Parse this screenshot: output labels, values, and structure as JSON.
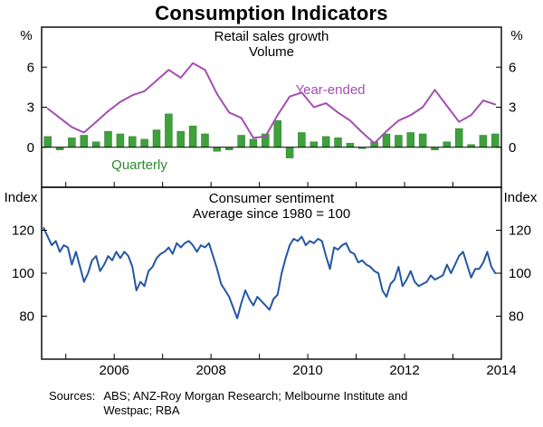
{
  "title": "Consumption Indicators",
  "footer": {
    "sources_label": "Sources:",
    "sources_line1": "ABS; ANZ-Roy Morgan Research; Melbourne Institute and",
    "sources_line2": "Westpac; RBA"
  },
  "x_axis": {
    "xlim": [
      2004.5,
      2014
    ],
    "year_tick_marks": [
      2005,
      2006,
      2007,
      2008,
      2009,
      2010,
      2011,
      2012,
      2013
    ],
    "year_labels": [
      2006,
      2008,
      2010,
      2012,
      2014
    ]
  },
  "chart_data": [
    {
      "type": "bar+line",
      "title": "Retail sales growth",
      "subtitle": "Volume",
      "unit_left": "%",
      "unit_right": "%",
      "ylim": [
        -3,
        9
      ],
      "yticks": [
        0,
        3,
        6
      ],
      "zero_line": true,
      "grid": false,
      "series": [
        {
          "name": "Year-ended",
          "type": "line",
          "color": "#a44fb0",
          "x_start": 2004.625,
          "x_step": 0.25,
          "values": [
            2.9,
            2.2,
            1.5,
            1.1,
            1.9,
            2.7,
            3.4,
            3.9,
            4.2,
            5.0,
            5.8,
            5.2,
            6.3,
            5.8,
            4.0,
            2.6,
            2.2,
            0.7,
            0.8,
            2.4,
            3.8,
            4.1,
            3.0,
            3.3,
            2.6,
            2.0,
            1.1,
            0.3,
            1.2,
            2.0,
            2.4,
            3.0,
            4.3,
            3.1,
            1.9,
            2.4,
            3.5,
            3.2
          ]
        },
        {
          "name": "Quarterly",
          "type": "bar",
          "color": "#3ea13c",
          "stroke": "#2e7d2e",
          "x_start": 2004.625,
          "x_step": 0.25,
          "values": [
            0.8,
            -0.2,
            0.7,
            0.9,
            0.4,
            1.2,
            1.0,
            0.8,
            0.6,
            1.3,
            2.5,
            1.2,
            1.6,
            1.0,
            -0.3,
            -0.2,
            0.9,
            0.6,
            1.0,
            2.0,
            -0.8,
            1.1,
            0.4,
            0.8,
            0.7,
            0.3,
            -0.1,
            0.4,
            1.0,
            0.9,
            1.1,
            1.0,
            -0.2,
            0.4,
            1.4,
            0.2,
            0.9,
            1.0
          ]
        }
      ],
      "annotations": [
        {
          "text": "Year-ended",
          "color": "#a44fb0"
        },
        {
          "text": "Quarterly",
          "color": "#3ea13c"
        }
      ]
    },
    {
      "type": "line",
      "title": "Consumer sentiment",
      "subtitle": "Average since 1980 = 100",
      "unit_left": "Index",
      "unit_right": "Index",
      "ylim": [
        60,
        140
      ],
      "yticks": [
        80,
        100,
        120
      ],
      "zero_line": false,
      "grid": false,
      "series": [
        {
          "name": "Consumer sentiment",
          "type": "line",
          "color": "#2456a4",
          "x_start": 2004.542,
          "x_step": 0.083333,
          "values": [
            121,
            117,
            113,
            115,
            110,
            113,
            112,
            104,
            110,
            103,
            96,
            100,
            106,
            108,
            101,
            104,
            108,
            106,
            110,
            107,
            110,
            108,
            103,
            92,
            96,
            94,
            101,
            103,
            107,
            109,
            110,
            112,
            109,
            114,
            112,
            114,
            115,
            113,
            110,
            113,
            112,
            114,
            108,
            102,
            95,
            92,
            89,
            84,
            79,
            86,
            92,
            88,
            85,
            89,
            87,
            85,
            83,
            88,
            90,
            100,
            107,
            113,
            116,
            115,
            117,
            113,
            115,
            114,
            116,
            115,
            108,
            102,
            112,
            111,
            113,
            114,
            110,
            109,
            105,
            106,
            104,
            103,
            101,
            100,
            92,
            89,
            95,
            97,
            103,
            94,
            97,
            101,
            96,
            94,
            95,
            96,
            99,
            97,
            98,
            99,
            104,
            100,
            104,
            108,
            110,
            104,
            98,
            102,
            102,
            105,
            110,
            103,
            100
          ]
        }
      ]
    }
  ]
}
